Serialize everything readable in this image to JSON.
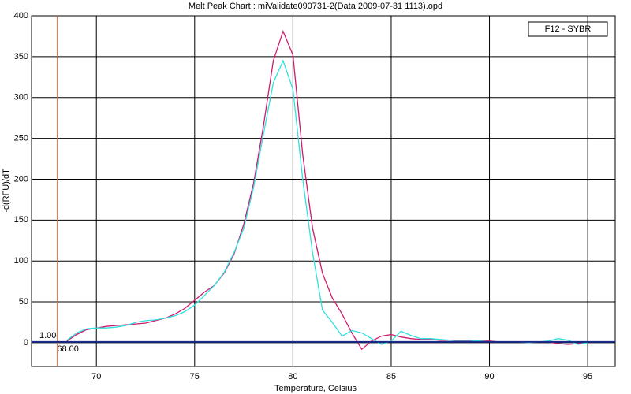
{
  "chart_data": {
    "type": "line",
    "title": "Melt Peak Chart : miValidate090731-2(Data 2009-07-31 1113).opd",
    "x_label": "Temperature, Celsius",
    "y_label": "-d(RFU)/dT",
    "legend_label": "F12 - SYBR",
    "x": [
      68.5,
      69,
      69.5,
      70,
      70.5,
      71,
      71.5,
      72,
      72.5,
      73,
      73.5,
      74,
      74.5,
      75,
      75.5,
      76,
      76.5,
      77,
      77.5,
      78,
      78.5,
      79,
      79.5,
      80,
      80.5,
      81,
      81.5,
      82,
      82.5,
      83,
      83.5,
      84,
      84.5,
      85,
      85.5,
      86,
      86.5,
      87,
      87.5,
      88,
      88.5,
      89,
      89.5,
      90,
      90.5,
      91,
      91.5,
      92,
      92.5,
      93,
      93.5,
      94,
      94.5,
      95
    ],
    "series": [
      {
        "color": "#d01a6e",
        "values": [
          2,
          10,
          16,
          18,
          20,
          21,
          22,
          23,
          24,
          27,
          30,
          35,
          42,
          52,
          62,
          70,
          85,
          108,
          145,
          195,
          265,
          345,
          381,
          352,
          230,
          140,
          85,
          55,
          35,
          12,
          -8,
          2,
          8,
          10,
          7,
          5,
          4,
          4,
          3,
          3,
          2,
          2,
          2,
          2,
          1,
          1,
          1,
          0,
          1,
          1,
          -1,
          -2,
          -1,
          0
        ]
      },
      {
        "color": "#30e0e0",
        "values": [
          3,
          12,
          17,
          18,
          18,
          19,
          21,
          25,
          27,
          28,
          30,
          33,
          38,
          46,
          58,
          70,
          86,
          110,
          140,
          190,
          255,
          318,
          345,
          310,
          200,
          110,
          40,
          25,
          8,
          15,
          12,
          5,
          -2,
          2,
          14,
          9,
          5,
          5,
          4,
          3,
          3,
          3,
          2,
          1,
          1,
          1,
          1,
          0,
          1,
          2,
          5,
          3,
          -2,
          0
        ]
      }
    ],
    "threshold": {
      "value": 1,
      "label": "1.00"
    },
    "cursor": {
      "value": 68,
      "label": "68.00"
    },
    "xlim": [
      66.7,
      96.4
    ],
    "ylim": [
      -29,
      400
    ],
    "xticks": [
      70,
      75,
      80,
      85,
      90,
      95
    ],
    "yticks": [
      0,
      50,
      100,
      150,
      200,
      250,
      300,
      350,
      400
    ],
    "grid": true
  }
}
